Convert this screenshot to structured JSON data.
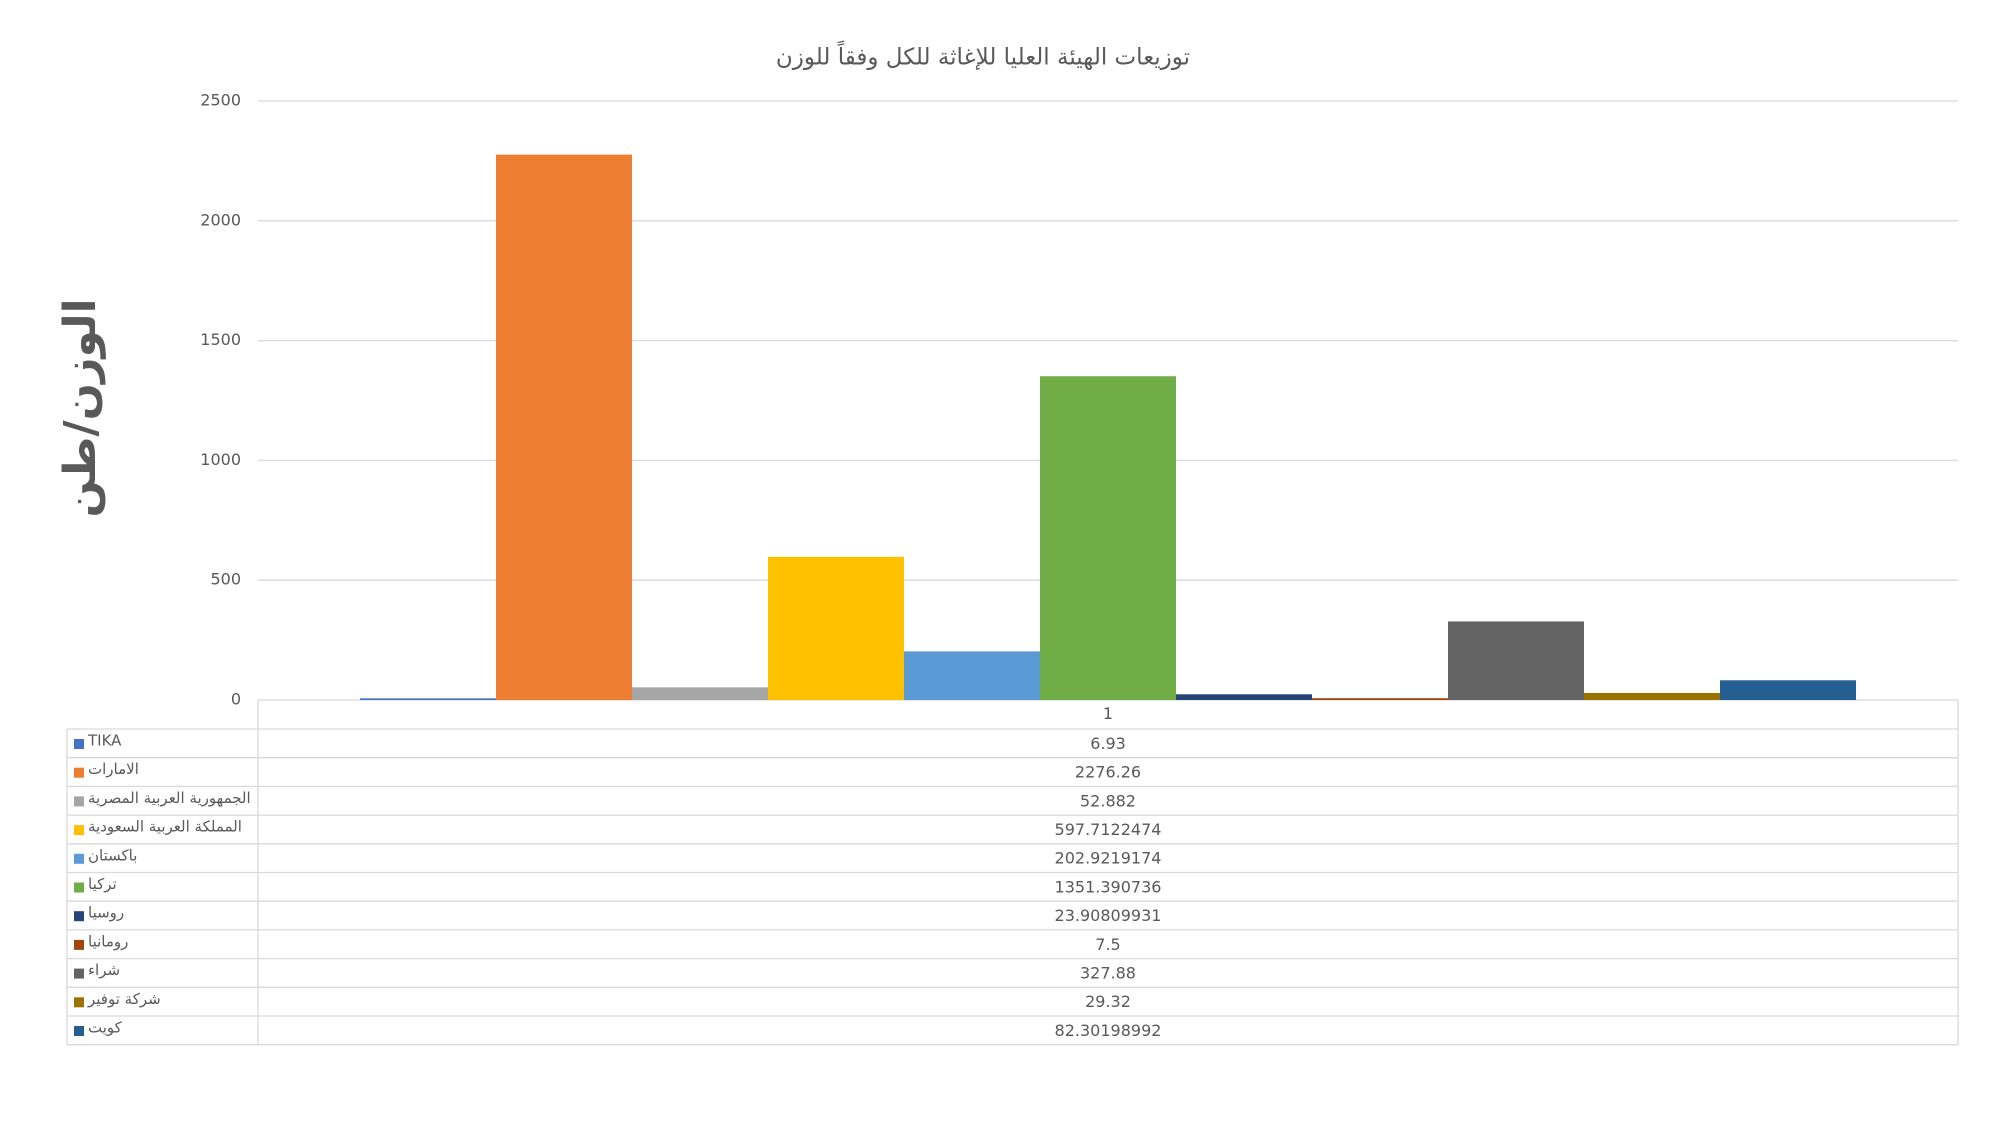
{
  "chart_data": {
    "type": "bar",
    "title": "توزيعات الهيئة العليا للإغاثة للكل وفقاً للوزن",
    "y_label": "الوزن/طن",
    "categories": [
      "1"
    ],
    "series": [
      {
        "name": "TIKA",
        "color": "#4472c4",
        "values": [
          6.93
        ]
      },
      {
        "name": "الامارات",
        "color": "#ed7d31",
        "values": [
          2276.26
        ]
      },
      {
        "name": "الجمهورية العربية المصرية",
        "color": "#a5a5a5",
        "values": [
          52.882
        ]
      },
      {
        "name": "المملكة العربية السعودية",
        "color": "#ffc000",
        "values": [
          597.7122474
        ]
      },
      {
        "name": "باكستان",
        "color": "#5b9bd5",
        "values": [
          202.9219174
        ]
      },
      {
        "name": "تركيا",
        "color": "#70ad47",
        "values": [
          1351.390736
        ]
      },
      {
        "name": "روسيا",
        "color": "#264478",
        "values": [
          23.90809931
        ]
      },
      {
        "name": "رومانيا",
        "color": "#9e480e",
        "values": [
          7.5
        ]
      },
      {
        "name": "شراء",
        "color": "#636363",
        "values": [
          327.88
        ]
      },
      {
        "name": "شركة توفير",
        "color": "#997300",
        "values": [
          29.32
        ]
      },
      {
        "name": "كويت",
        "color": "#255e91",
        "values": [
          82.30198992
        ]
      }
    ],
    "ylim": [
      0,
      2500
    ],
    "yticks": [
      0,
      500,
      1000,
      1500,
      2000,
      2500
    ],
    "grid": true
  }
}
